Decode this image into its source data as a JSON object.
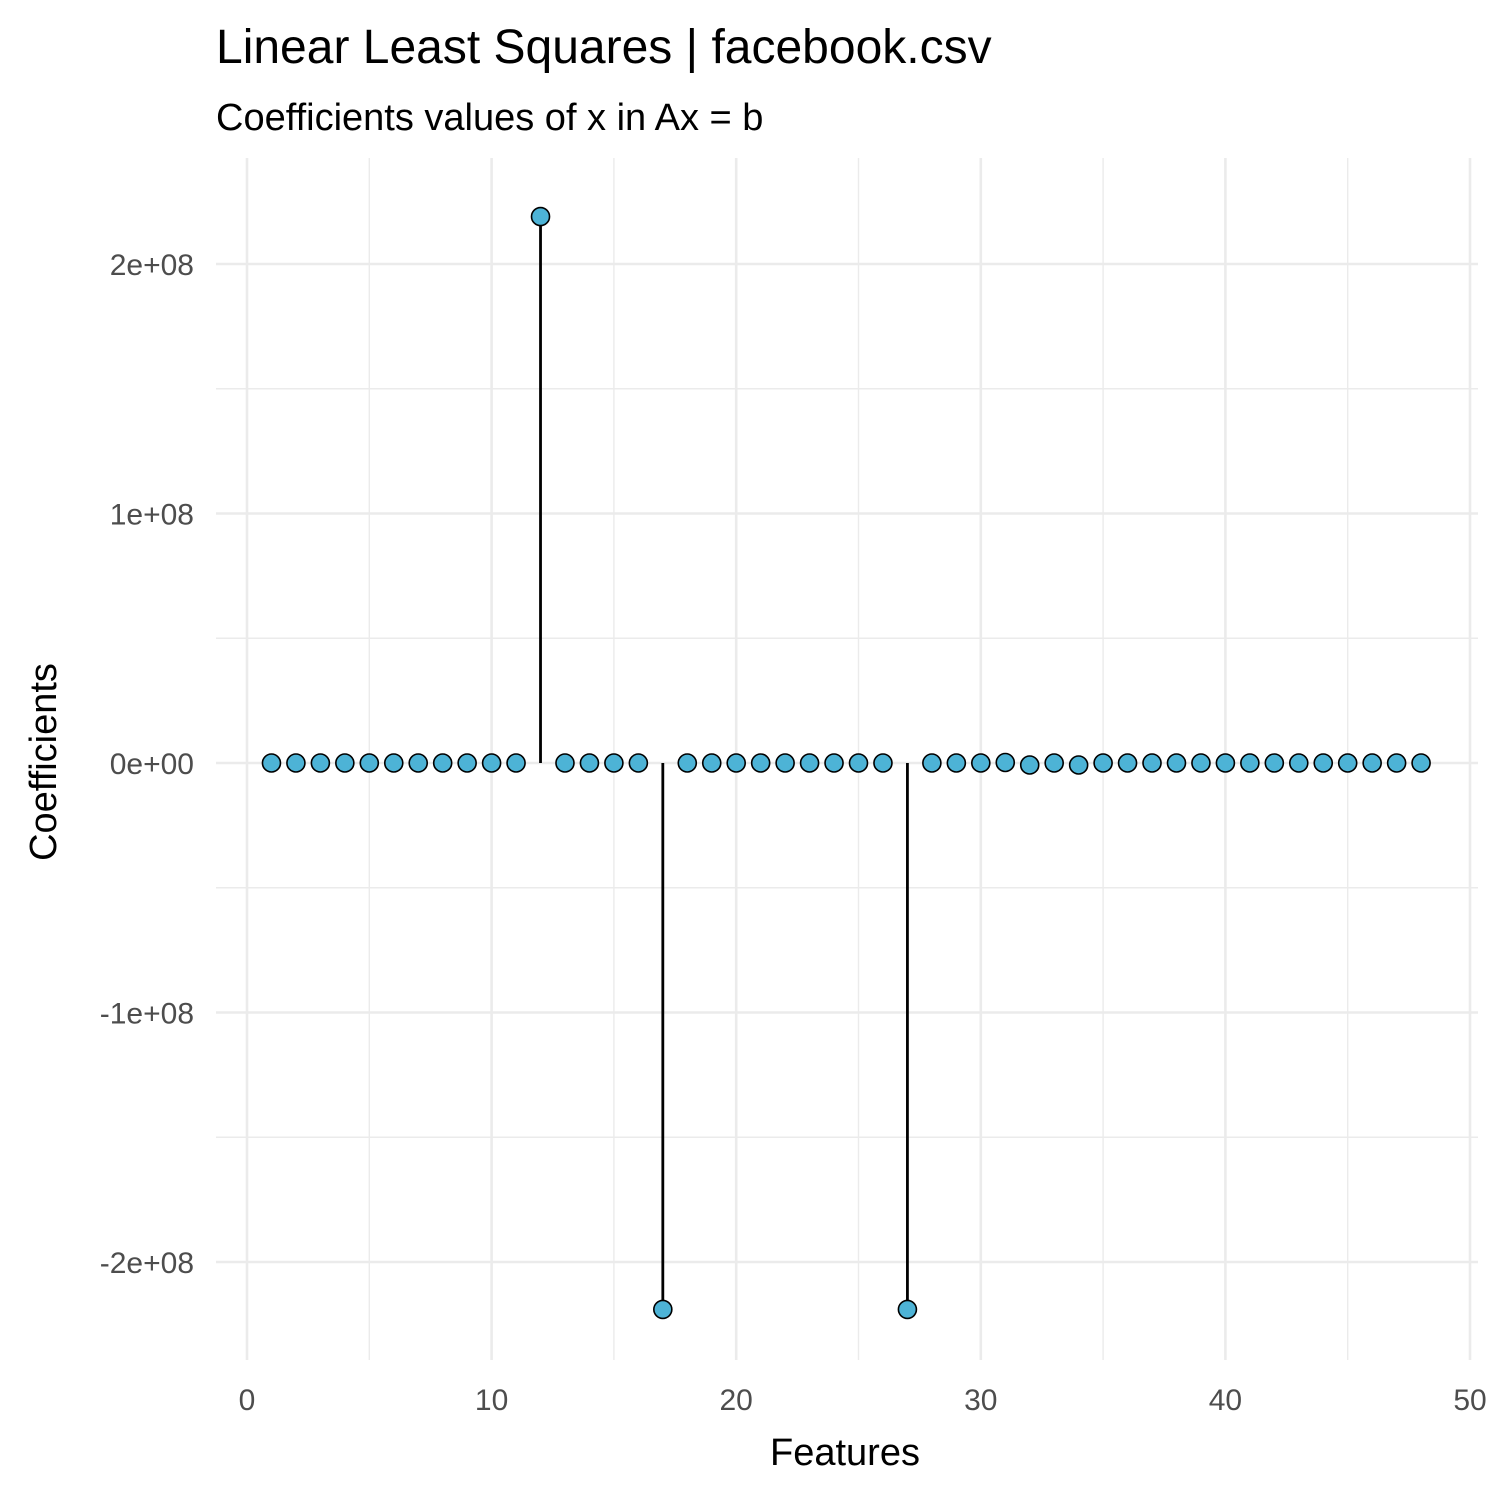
{
  "chart_data": {
    "type": "scatter",
    "title": "Linear Least Squares | facebook.csv",
    "subtitle": "Coefficients values of x in Ax = b",
    "xlabel": "Features",
    "ylabel": "Coefficients",
    "xlim": [
      0,
      50
    ],
    "ylim": [
      -240000000,
      240000000
    ],
    "x_ticks": [
      0,
      10,
      20,
      30,
      40,
      50
    ],
    "x_tick_labels": [
      "0",
      "10",
      "20",
      "30",
      "40",
      "50"
    ],
    "y_ticks": [
      -200000000,
      -100000000,
      0,
      100000000,
      200000000
    ],
    "y_tick_labels": [
      "-2e+08",
      "-1e+08",
      "0e+00",
      "1e+08",
      "2e+08"
    ],
    "grid": true,
    "point_color": "#4db3d6",
    "stem_color": "#000000",
    "x": [
      1,
      2,
      3,
      4,
      5,
      6,
      7,
      8,
      9,
      10,
      11,
      12,
      13,
      14,
      15,
      16,
      17,
      18,
      19,
      20,
      21,
      22,
      23,
      24,
      25,
      26,
      27,
      28,
      29,
      30,
      31,
      32,
      33,
      34,
      35,
      36,
      37,
      38,
      39,
      40,
      41,
      42,
      43,
      44,
      45,
      46,
      47,
      48
    ],
    "y": [
      0,
      0,
      0,
      0,
      0,
      0,
      0,
      0,
      0,
      0,
      0,
      219000000,
      0,
      0,
      0,
      0,
      -219000000,
      0,
      0,
      0,
      0,
      0,
      0,
      0,
      0,
      0,
      -219000000,
      0,
      0,
      0,
      200000,
      -800000,
      0,
      -800000,
      0,
      0,
      0,
      0,
      0,
      0,
      0,
      0,
      0,
      0,
      0,
      0,
      0,
      0
    ]
  }
}
